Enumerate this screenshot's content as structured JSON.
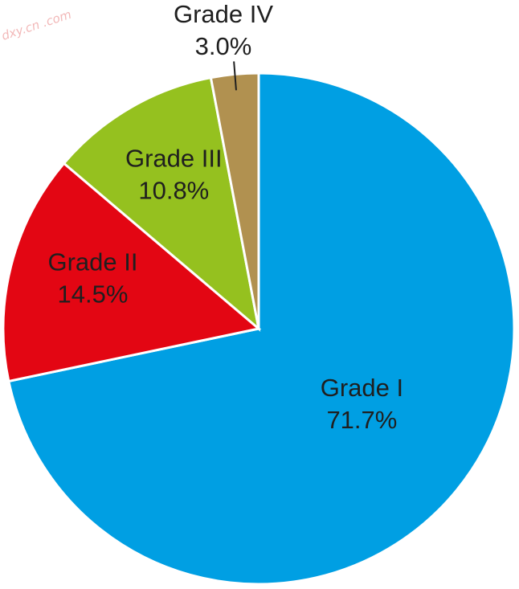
{
  "watermark": "dxy.cn .com",
  "chart_data": {
    "type": "pie",
    "title": "",
    "start_angle_deg": 0,
    "direction": "clockwise",
    "slices": [
      {
        "category": "Grade I",
        "value": 71.7,
        "label": "71.7%",
        "color": "#009fe3"
      },
      {
        "category": "Grade II",
        "value": 14.5,
        "label": "14.5%",
        "color": "#e30613"
      },
      {
        "category": "Grade III",
        "value": 10.8,
        "label": "10.8%",
        "color": "#95c11f"
      },
      {
        "category": "Grade IV",
        "value": 3.0,
        "label": "3.0%",
        "color": "#b19150"
      }
    ]
  }
}
